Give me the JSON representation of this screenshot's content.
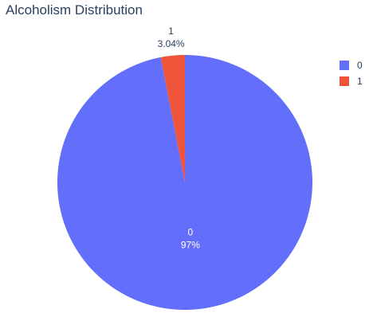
{
  "chart_data": {
    "type": "pie",
    "title": "Alcoholism Distribution",
    "labels": [
      "0",
      "1"
    ],
    "values": [
      96.96,
      3.04
    ],
    "percent_labels": [
      "97%",
      "3.04%"
    ],
    "colors": [
      "#636efa",
      "#ef553b"
    ],
    "legend": {
      "placement": "top-right",
      "entries": [
        "0",
        "1"
      ]
    }
  }
}
